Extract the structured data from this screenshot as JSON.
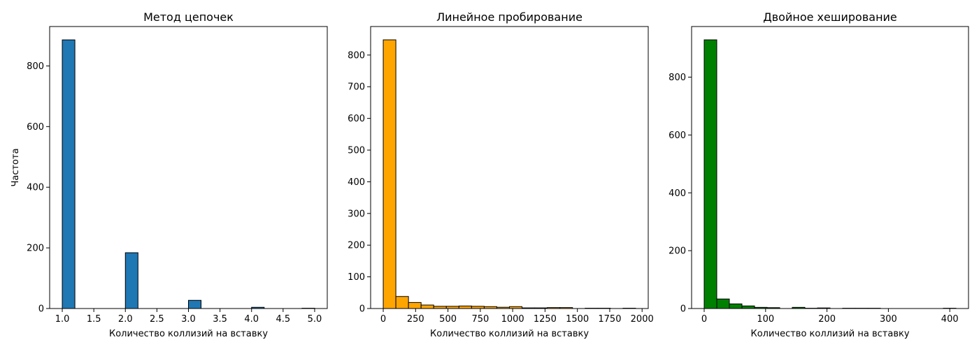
{
  "chart_data": [
    {
      "type": "bar",
      "title": "Метод цепочек",
      "xlabel": "Количество коллизий на вставку",
      "ylabel": "Частота",
      "color": "#1f77b4",
      "edge_color": "#000000",
      "bin_range": [
        1,
        5
      ],
      "bins": 20,
      "values": [
        886,
        0,
        0,
        0,
        0,
        184,
        0,
        0,
        0,
        0,
        27,
        0,
        0,
        0,
        0,
        4,
        0,
        0,
        0,
        1
      ],
      "xlim": [
        0.8,
        5.2
      ],
      "ylim": [
        0,
        930
      ],
      "xticks": [
        1.0,
        1.5,
        2.0,
        2.5,
        3.0,
        3.5,
        4.0,
        4.5,
        5.0
      ],
      "xtick_labels": [
        "1.0",
        "1.5",
        "2.0",
        "2.5",
        "3.0",
        "3.5",
        "4.0",
        "4.5",
        "5.0"
      ],
      "yticks": [
        0,
        200,
        400,
        600,
        800
      ],
      "ytick_labels": [
        "0",
        "200",
        "400",
        "600",
        "800"
      ]
    },
    {
      "type": "bar",
      "title": "Линейное пробирование",
      "xlabel": "Количество коллизий на вставку",
      "ylabel": "",
      "color": "#ffa500",
      "edge_color": "#000000",
      "bin_range": [
        0,
        1950
      ],
      "bins": 20,
      "values": [
        848,
        38,
        19,
        11,
        7,
        7,
        8,
        7,
        6,
        4,
        6,
        2,
        2,
        3,
        3,
        0,
        1,
        1,
        0,
        1
      ],
      "xlim": [
        -97.5,
        2047.5
      ],
      "ylim": [
        0,
        890
      ],
      "xticks": [
        0,
        250,
        500,
        750,
        1000,
        1250,
        1500,
        1750,
        2000
      ],
      "xtick_labels": [
        "0",
        "250",
        "500",
        "750",
        "1000",
        "1250",
        "1500",
        "1750",
        "2000"
      ],
      "yticks": [
        0,
        100,
        200,
        300,
        400,
        500,
        600,
        700,
        800
      ],
      "ytick_labels": [
        "0",
        "100",
        "200",
        "300",
        "400",
        "500",
        "600",
        "700",
        "800"
      ]
    },
    {
      "type": "bar",
      "title": "Двойное хеширование",
      "xlabel": "Количество коллизий на вставку",
      "ylabel": "",
      "color": "#008000",
      "edge_color": "#000000",
      "bin_range": [
        0,
        410
      ],
      "bins": 20,
      "values": [
        929,
        33,
        16,
        9,
        4,
        3,
        0,
        4,
        1,
        2,
        0,
        1,
        1,
        1,
        0,
        0,
        0,
        0,
        0,
        1
      ],
      "xlim": [
        -20.5,
        430.5
      ],
      "ylim": [
        0,
        975
      ],
      "xticks": [
        0,
        100,
        200,
        300,
        400
      ],
      "xtick_labels": [
        "0",
        "100",
        "200",
        "300",
        "400"
      ],
      "yticks": [
        0,
        200,
        400,
        600,
        800
      ],
      "ytick_labels": [
        "0",
        "200",
        "400",
        "600",
        "800"
      ]
    }
  ]
}
